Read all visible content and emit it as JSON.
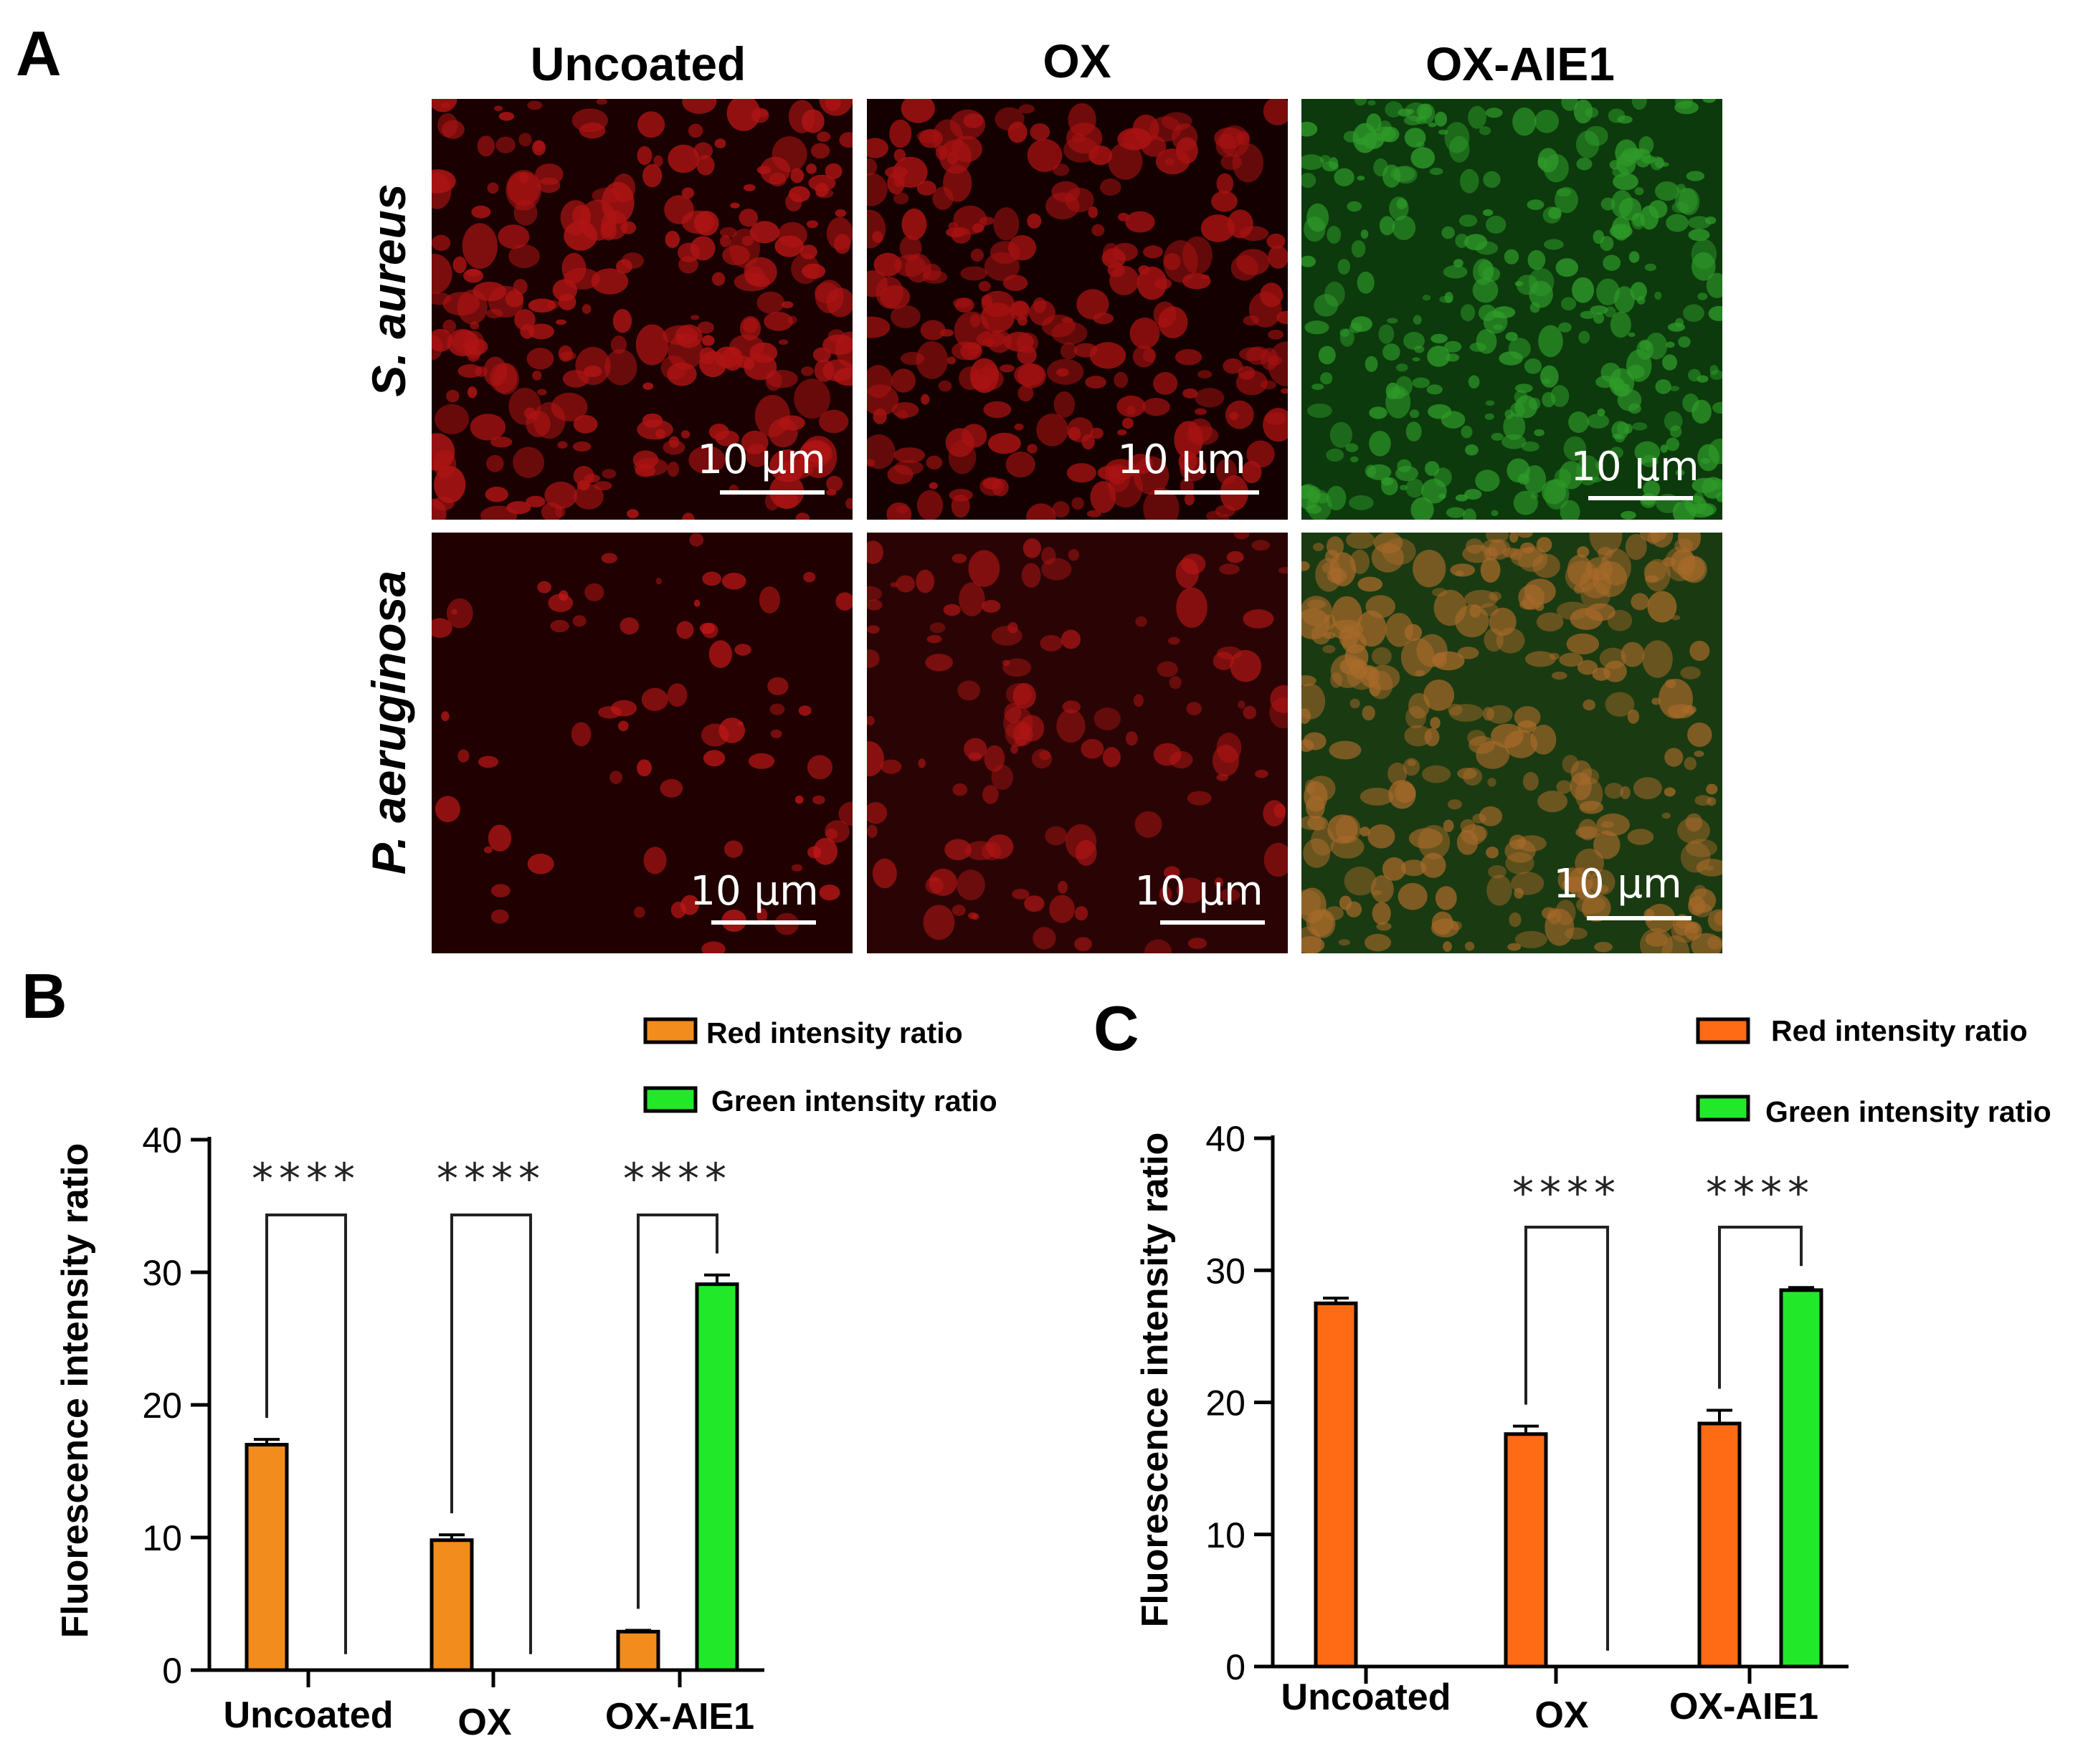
{
  "panel_a": {
    "letter": "A",
    "columns": [
      "Uncoated",
      "OX",
      "OX-AIE1"
    ],
    "rows": [
      "S. aureus",
      "P. aeruginosa"
    ],
    "scale_bar_label": "10 μm",
    "tiles": [
      {
        "row": 0,
        "col": 0,
        "stain": "red",
        "background": "#1a0000",
        "cell_color": "#b01414",
        "seed": 11
      },
      {
        "row": 0,
        "col": 1,
        "stain": "red",
        "background": "#150000",
        "cell_color": "#a81212",
        "seed": 23
      },
      {
        "row": 0,
        "col": 2,
        "stain": "green",
        "background": "#0c3a0c",
        "cell_color": "#2f9b2a",
        "seed": 37
      },
      {
        "row": 1,
        "col": 0,
        "stain": "red",
        "background": "#200000",
        "cell_color": "#c81818",
        "seed": 41
      },
      {
        "row": 1,
        "col": 1,
        "stain": "red",
        "background": "#2a0404",
        "cell_color": "#b41616",
        "seed": 53
      },
      {
        "row": 1,
        "col": 2,
        "stain": "mixed",
        "background": "#1a3a12",
        "cell_color": "#a86a2a",
        "seed": 67
      }
    ]
  },
  "legend": {
    "red": "Red intensity ratio",
    "green": "Green intensity ratio"
  },
  "colors": {
    "orange": "#f28c1c",
    "orange_c": "#ff6a14",
    "green": "#22e82a"
  },
  "chart_data": [
    {
      "panel": "B",
      "type": "bar",
      "categories": [
        "Uncoated",
        "OX",
        "OX-AIE1"
      ],
      "series": [
        {
          "name": "Red intensity ratio",
          "values": [
            17.0,
            9.8,
            2.9
          ],
          "errors": [
            0.4,
            0.4,
            0.1
          ]
        },
        {
          "name": "Green intensity ratio",
          "values": [
            0,
            0,
            29.1
          ],
          "errors": [
            0,
            0,
            0.7
          ]
        }
      ],
      "ylabel": "Fluorescence intensity ratio",
      "ylim": [
        0,
        40
      ],
      "yticks": [
        0,
        10,
        20,
        30,
        40
      ],
      "significance": [
        "****",
        "****",
        "****"
      ],
      "legend_position": "top-right"
    },
    {
      "panel": "C",
      "type": "bar",
      "categories": [
        "Uncoated",
        "OX",
        "OX-AIE1"
      ],
      "series": [
        {
          "name": "Red intensity ratio",
          "values": [
            27.5,
            17.6,
            18.4
          ],
          "errors": [
            0.4,
            0.6,
            1.0
          ]
        },
        {
          "name": "Green intensity ratio",
          "values": [
            0,
            0,
            28.5
          ],
          "errors": [
            0,
            0,
            0.2
          ]
        }
      ],
      "ylabel": "Fluorescence intensity ratio",
      "ylim": [
        0,
        40
      ],
      "yticks": [
        0,
        10,
        20,
        30,
        40
      ],
      "significance": [
        "",
        "****",
        "****"
      ],
      "legend_position": "top-right"
    }
  ]
}
